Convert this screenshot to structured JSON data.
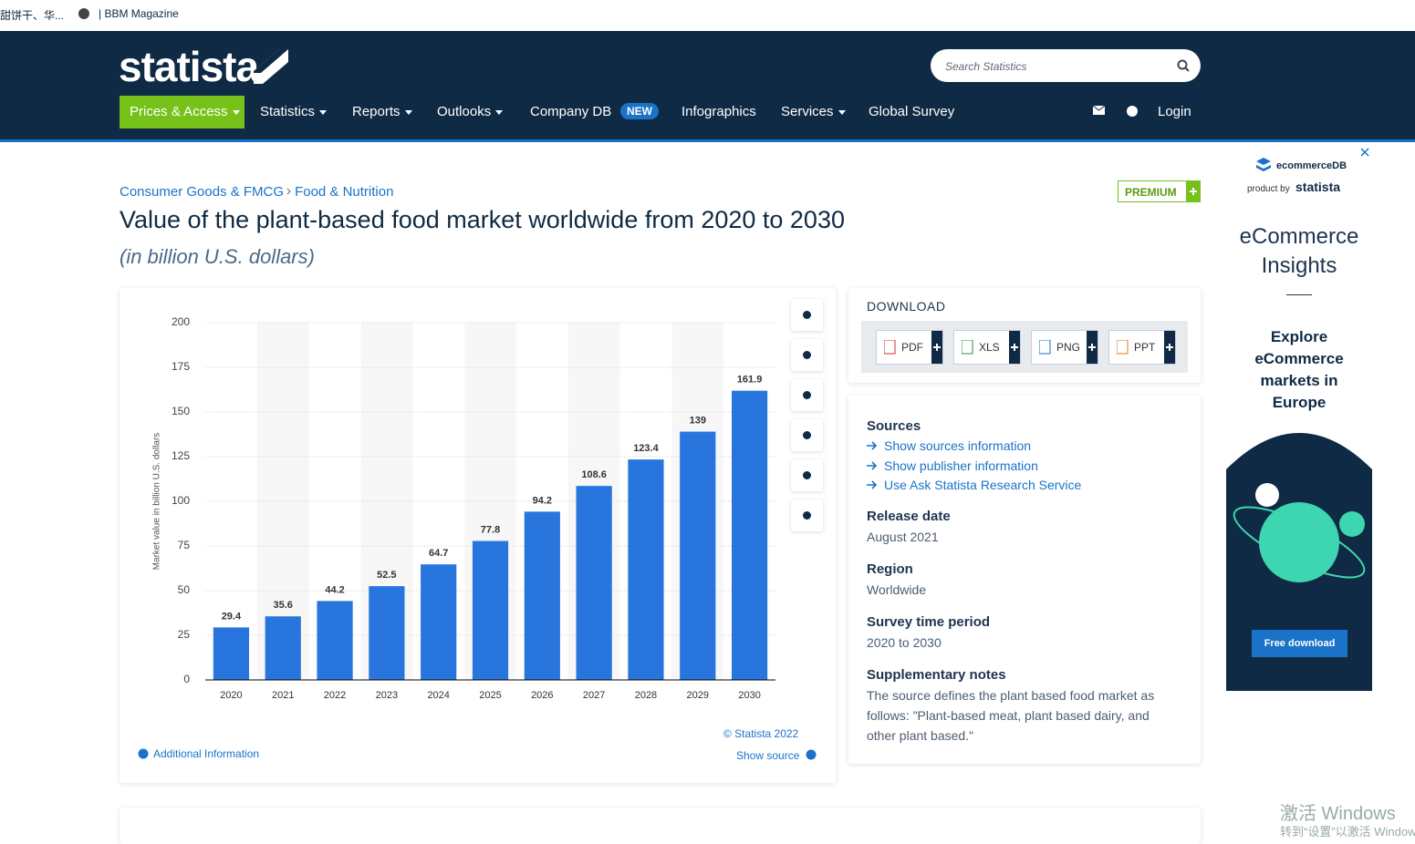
{
  "browser_tabs": [
    "甜饼干、华...",
    "| BBM Magazine"
  ],
  "header": {
    "logo": "statista",
    "search_placeholder": "Search Statistics",
    "nav": [
      "Prices & Access",
      "Statistics",
      "Reports",
      "Outlooks",
      "Company DB",
      "Infographics",
      "Services",
      "Global Survey"
    ],
    "new_badge": "NEW",
    "login": "Login"
  },
  "breadcrumb": [
    "Consumer Goods & FMCG",
    "Food & Nutrition"
  ],
  "premium": "PREMIUM",
  "chart_data": {
    "type": "bar",
    "title": "Value of the plant-based food market worldwide from 2020 to 2030",
    "subtitle": "(in billion U.S. dollars)",
    "y_label": "Market value in billion U.S. dollars",
    "categories": [
      "2020",
      "2021",
      "2022",
      "2023",
      "2024",
      "2025",
      "2026",
      "2027",
      "2028",
      "2029",
      "2030"
    ],
    "values": [
      29.4,
      35.6,
      44.2,
      52.5,
      64.7,
      77.8,
      94.2,
      108.6,
      123.4,
      139,
      161.9
    ],
    "color": "#2876dd",
    "ylim": [
      0,
      200
    ],
    "yticks": [
      0,
      25,
      50,
      75,
      100,
      125,
      150,
      175,
      200
    ],
    "grid": true
  },
  "chart_footer": {
    "copyright": "© Statista 2022",
    "show_source": "Show source",
    "additional_information": "Additional Information"
  },
  "download": {
    "title": "DOWNLOAD",
    "formats": [
      "PDF",
      "XLS",
      "PNG",
      "PPT"
    ]
  },
  "details": {
    "sources_title": "Sources",
    "source_links": [
      "Show sources information",
      "Show publisher information",
      "Use Ask Statista Research Service"
    ],
    "items": [
      {
        "label": "Release date",
        "value": "August 2021"
      },
      {
        "label": "Region",
        "value": "Worldwide"
      },
      {
        "label": "Survey time period",
        "value": "2020 to 2030"
      },
      {
        "label": "Supplementary notes",
        "value": "The source defines the plant based food market as follows: \"Plant-based meat, plant based dairy, and other plant based.\""
      }
    ]
  },
  "ad": {
    "brand": "ecommerceDB",
    "product_by": "product by",
    "statista": "statista",
    "headline": "eCommerce Insights",
    "text": "Explore eCommerce markets in Europe",
    "button": "Free download"
  },
  "watermark": [
    "激活 Windows",
    "转到“设置”以激活 Windows。"
  ]
}
